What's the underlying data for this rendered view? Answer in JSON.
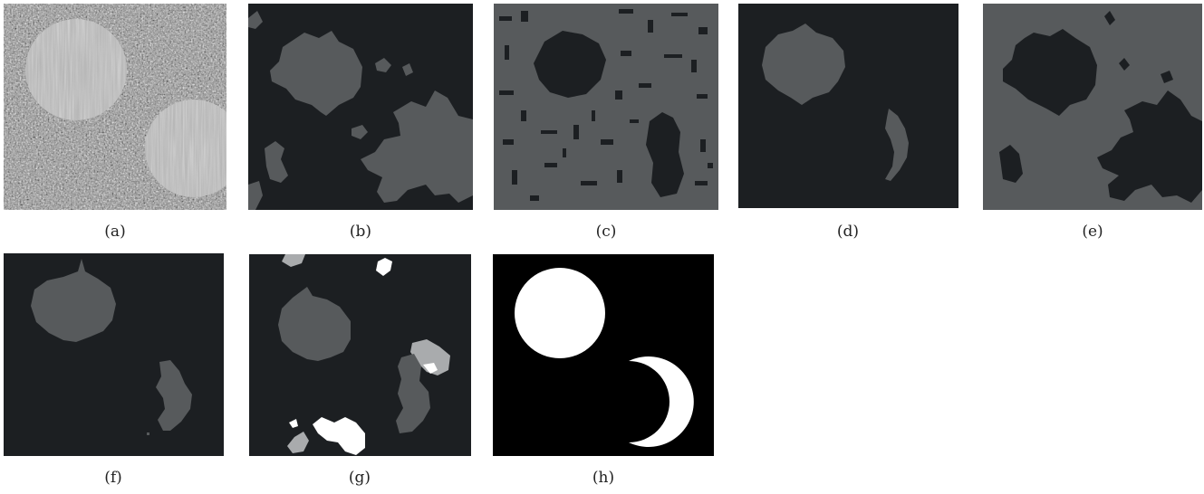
{
  "figure": {
    "panels": [
      {
        "label": "(a)",
        "desc": "noisy synthetic input with two textured disks"
      },
      {
        "label": "(b)",
        "desc": "segmentation result"
      },
      {
        "label": "(c)",
        "desc": "segmentation result"
      },
      {
        "label": "(d)",
        "desc": "segmentation result"
      },
      {
        "label": "(e)",
        "desc": "segmentation result"
      },
      {
        "label": "(f)",
        "desc": "segmentation result"
      },
      {
        "label": "(g)",
        "desc": "segmentation result"
      },
      {
        "label": "(h)",
        "desc": "ground truth"
      }
    ]
  },
  "colors": {
    "background": "#1c1f22",
    "region": "#575a5c",
    "white": "#ffffff",
    "light_gray": "#a9abad"
  }
}
